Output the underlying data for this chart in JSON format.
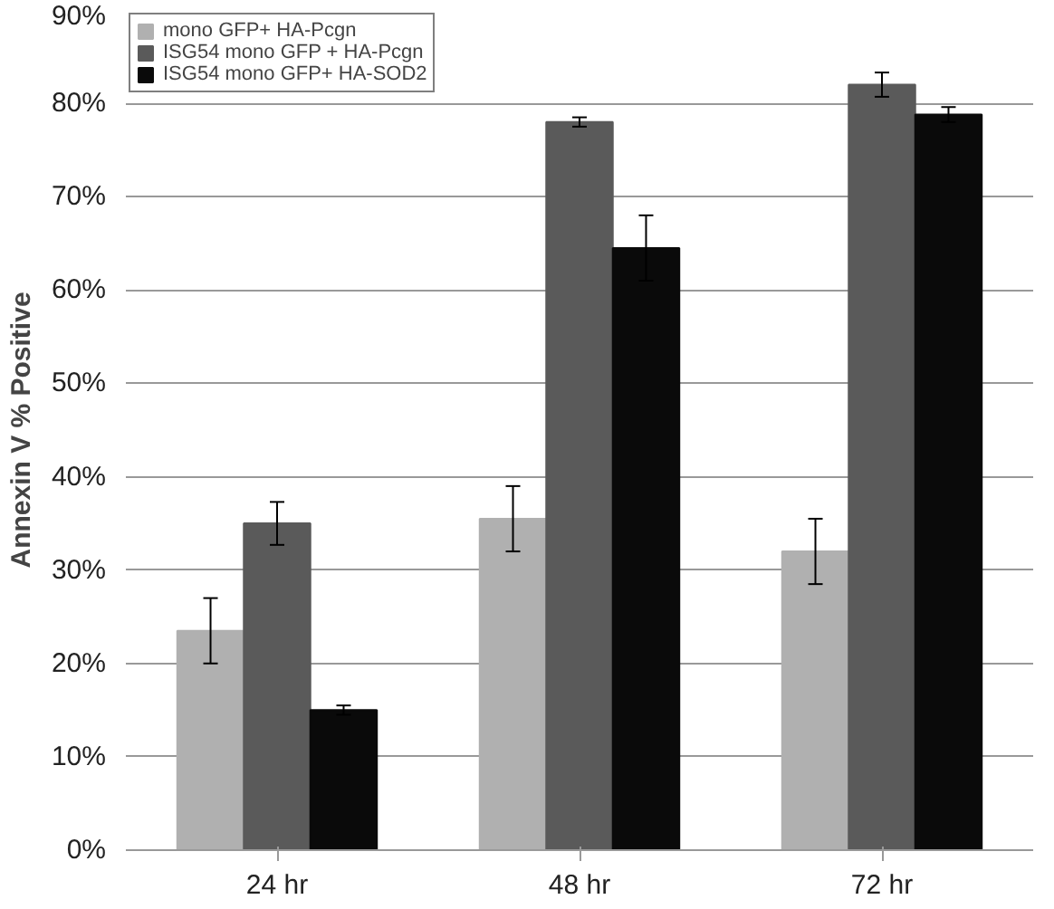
{
  "chart_data": {
    "type": "bar",
    "ylabel": "Annexin V % Positive",
    "categories": [
      "24 hr",
      "48 hr",
      "72 hr"
    ],
    "series": [
      {
        "name": "mono GFP+ HA-Pcgn",
        "color": "#b0b0b0",
        "values": [
          23.5,
          35.5,
          32
        ],
        "errors": [
          3.5,
          3.5,
          3.5
        ]
      },
      {
        "name": "ISG54 mono GFP + HA-Pcgn",
        "color": "#5a5a5a",
        "values": [
          35,
          78,
          82
        ],
        "errors": [
          2.3,
          0.5,
          1.3
        ]
      },
      {
        "name": "ISG54 mono GFP+ HA-SOD2",
        "color": "#0a0a0a",
        "values": [
          15,
          64.5,
          78.8
        ],
        "errors": [
          0.5,
          3.5,
          0.8
        ]
      }
    ],
    "ylim": [
      0,
      90
    ],
    "yticks": [
      {
        "value": 0,
        "label": "0%"
      },
      {
        "value": 10,
        "label": "10%"
      },
      {
        "value": 20,
        "label": "20%"
      },
      {
        "value": 30,
        "label": "30%"
      },
      {
        "value": 40,
        "label": "40%"
      },
      {
        "value": 50,
        "label": "50%"
      },
      {
        "value": 60,
        "label": "60%"
      },
      {
        "value": 70,
        "label": "70%"
      },
      {
        "value": 80,
        "label": "80%"
      },
      {
        "value": 90,
        "label": "90%"
      }
    ],
    "grid": "y",
    "legend": "top left"
  }
}
